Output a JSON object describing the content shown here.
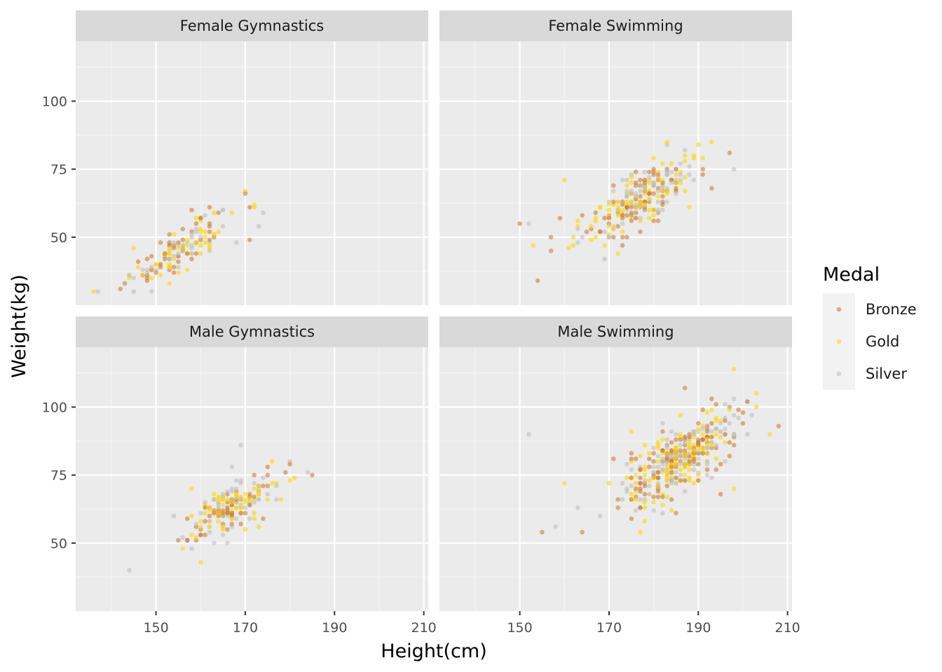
{
  "chart_data": {
    "type": "scatter",
    "facets": [
      "Female Gymnastics",
      "Female Swimming",
      "Male Gymnastics",
      "Male Swimming"
    ],
    "xlabel": "Height(cm)",
    "ylabel": "Weight(kg)",
    "xlim": [
      132,
      211
    ],
    "ylim": [
      25,
      122
    ],
    "xticks": [
      150,
      170,
      190,
      210
    ],
    "yticks": [
      50,
      75,
      100
    ],
    "grid": true,
    "legend": {
      "title": "Medal",
      "position": "right",
      "entries": [
        {
          "name": "Bronze",
          "color": "#cd7f32"
        },
        {
          "name": "Gold",
          "color": "#ffd700"
        },
        {
          "name": "Silver",
          "color": "#c0c0c0"
        }
      ]
    },
    "clusters": {
      "Female Gymnastics": {
        "xmean": 155,
        "xsd": 6.5,
        "ymean": 45,
        "slope": 0.95,
        "ysd": 4,
        "n": 140,
        "extra": [
          [
            136,
            30,
            "Gold"
          ],
          [
            137,
            30,
            "Silver"
          ],
          [
            170,
            66,
            "Bronze"
          ],
          [
            171,
            49,
            "Bronze"
          ],
          [
            173,
            54,
            "Silver"
          ],
          [
            162,
            61,
            "Bronze"
          ],
          [
            158,
            60,
            "Bronze"
          ],
          [
            143,
            33,
            "Bronze"
          ]
        ]
      },
      "Female Swimming": {
        "xmean": 176,
        "xsd": 6.5,
        "ymean": 63,
        "slope": 0.95,
        "ysd": 5,
        "n": 260,
        "extra": [
          [
            150,
            55,
            "Bronze"
          ],
          [
            152,
            55,
            "Silver"
          ],
          [
            157,
            45,
            "Bronze"
          ],
          [
            183,
            85,
            "Gold"
          ],
          [
            193,
            85,
            "Gold"
          ],
          [
            193,
            68,
            "Bronze"
          ],
          [
            198,
            75,
            "Silver"
          ],
          [
            187,
            82,
            "Silver"
          ],
          [
            160,
            71,
            "Gold"
          ]
        ]
      },
      "Male Gymnastics": {
        "xmean": 166,
        "xsd": 5.5,
        "ymean": 63,
        "slope": 0.85,
        "ysd": 4.5,
        "n": 190,
        "extra": [
          [
            169,
            86,
            "Silver"
          ],
          [
            180,
            79,
            "Bronze"
          ],
          [
            184,
            76,
            "Silver"
          ],
          [
            185,
            75,
            "Bronze"
          ],
          [
            180,
            73,
            "Gold"
          ],
          [
            156,
            48,
            "Gold"
          ],
          [
            154,
            60,
            "Silver"
          ],
          [
            158,
            70,
            "Gold"
          ]
        ]
      },
      "Male Swimming": {
        "xmean": 186,
        "xsd": 7,
        "ymean": 81,
        "slope": 1.0,
        "ysd": 6,
        "n": 380,
        "extra": [
          [
            152,
            90,
            "Silver"
          ],
          [
            155,
            54,
            "Bronze"
          ],
          [
            158,
            56,
            "Silver"
          ],
          [
            160,
            72,
            "Gold"
          ],
          [
            168,
            60,
            "Silver"
          ],
          [
            198,
            114,
            "Gold"
          ],
          [
            187,
            107,
            "Bronze"
          ],
          [
            208,
            93,
            "Bronze"
          ],
          [
            203,
            105,
            "Gold"
          ],
          [
            198,
            70,
            "Gold"
          ],
          [
            195,
            68,
            "Bronze"
          ],
          [
            206,
            90,
            "Gold"
          ]
        ]
      }
    }
  }
}
